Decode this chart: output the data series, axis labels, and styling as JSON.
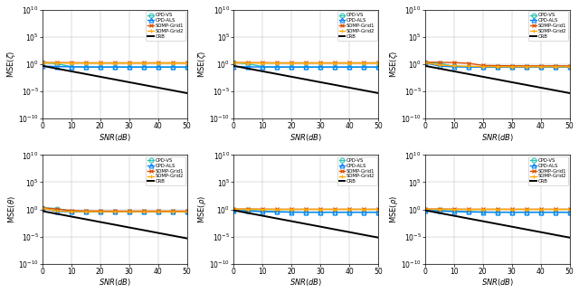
{
  "snr": [
    0,
    5,
    10,
    15,
    20,
    25,
    30,
    35,
    40,
    45,
    50
  ],
  "colors": {
    "cpd_vs": "#2ec4b6",
    "cpd_als": "#0080ff",
    "somp_grid1": "#d94f00",
    "somp_grid2": "#ffaa00",
    "crb": "#000000"
  },
  "subplot_ylabels": [
    "MSE($\\zeta$)",
    "MSE($\\zeta$)",
    "MSE($\\zeta$)",
    "MSE($\\theta$)",
    "MSE($\\rho$)",
    "MSE($\\rho$)"
  ],
  "legend_labels": [
    "CPD-VS",
    "CPD-ALS",
    "SOMP-Grid1",
    "SOMP-Grid2",
    "CRB"
  ],
  "subplots": [
    {
      "cpd_vs": [
        2.0,
        1.2,
        0.35,
        0.32,
        0.31,
        0.3,
        0.3,
        0.3,
        0.3,
        0.3,
        0.3
      ],
      "cpd_als": [
        0.45,
        0.38,
        0.33,
        0.31,
        0.3,
        0.3,
        0.3,
        0.3,
        0.3,
        0.3,
        0.3
      ],
      "somp_grid1": [
        2.0,
        2.0,
        1.9,
        1.8,
        1.8,
        1.8,
        1.8,
        1.8,
        1.8,
        1.8,
        1.8
      ],
      "somp_grid2": [
        1.8,
        1.7,
        1.6,
        1.6,
        1.6,
        1.6,
        1.6,
        1.6,
        1.6,
        1.6,
        1.6
      ],
      "crb": [
        0.5,
        0.16,
        0.05,
        0.016,
        0.005,
        0.0016,
        0.0005,
        0.00016,
        5e-05,
        1.6e-05,
        5e-06
      ]
    },
    {
      "cpd_vs": [
        2.0,
        1.2,
        0.35,
        0.32,
        0.31,
        0.3,
        0.3,
        0.3,
        0.3,
        0.3,
        0.3
      ],
      "cpd_als": [
        0.38,
        0.33,
        0.31,
        0.3,
        0.3,
        0.3,
        0.3,
        0.3,
        0.3,
        0.3,
        0.3
      ],
      "somp_grid1": [
        2.0,
        2.0,
        1.9,
        1.8,
        1.8,
        1.8,
        1.8,
        1.8,
        1.8,
        1.8,
        1.8
      ],
      "somp_grid2": [
        1.8,
        1.7,
        1.6,
        1.6,
        1.6,
        1.6,
        1.6,
        1.6,
        1.6,
        1.6,
        1.6
      ],
      "crb": [
        0.5,
        0.16,
        0.05,
        0.016,
        0.005,
        0.0016,
        0.0005,
        0.00016,
        5e-05,
        1.6e-05,
        5e-06
      ]
    },
    {
      "cpd_vs": [
        2.2,
        1.5,
        0.4,
        0.33,
        0.31,
        0.3,
        0.3,
        0.3,
        0.3,
        0.3,
        0.3
      ],
      "cpd_als": [
        1.8,
        0.45,
        0.33,
        0.31,
        0.3,
        0.3,
        0.3,
        0.3,
        0.3,
        0.3,
        0.3
      ],
      "somp_grid1": [
        2.5,
        2.2,
        2.0,
        1.5,
        0.6,
        0.55,
        0.52,
        0.5,
        0.5,
        0.5,
        0.5
      ],
      "somp_grid2": [
        2.0,
        0.7,
        0.5,
        0.42,
        0.38,
        0.36,
        0.35,
        0.35,
        0.35,
        0.35,
        0.35
      ],
      "crb": [
        0.5,
        0.16,
        0.05,
        0.016,
        0.005,
        0.0016,
        0.0005,
        0.00016,
        5e-05,
        1.6e-05,
        5e-06
      ]
    },
    {
      "cpd_vs": [
        2.0,
        1.5,
        0.45,
        0.4,
        0.38,
        0.37,
        0.37,
        0.37,
        0.37,
        0.37,
        0.37
      ],
      "cpd_als": [
        1.8,
        0.42,
        0.38,
        0.37,
        0.37,
        0.37,
        0.37,
        0.37,
        0.37,
        0.37,
        0.37
      ],
      "somp_grid1": [
        2.0,
        1.2,
        0.65,
        0.55,
        0.52,
        0.5,
        0.5,
        0.5,
        0.5,
        0.5,
        0.5
      ],
      "somp_grid2": [
        1.8,
        0.5,
        0.42,
        0.39,
        0.38,
        0.38,
        0.38,
        0.38,
        0.38,
        0.38,
        0.38
      ],
      "crb": [
        0.5,
        0.16,
        0.05,
        0.016,
        0.005,
        0.0016,
        0.0005,
        0.00016,
        5e-05,
        1.6e-05,
        5e-06
      ]
    },
    {
      "cpd_vs": [
        1.0,
        0.75,
        0.5,
        0.4,
        0.35,
        0.32,
        0.32,
        0.32,
        0.32,
        0.32,
        0.32
      ],
      "cpd_als": [
        0.7,
        0.5,
        0.4,
        0.35,
        0.32,
        0.31,
        0.31,
        0.31,
        0.31,
        0.31,
        0.31
      ],
      "somp_grid1": [
        1.2,
        1.2,
        1.15,
        1.1,
        1.1,
        1.1,
        1.1,
        1.1,
        1.1,
        1.1,
        1.1
      ],
      "somp_grid2": [
        1.1,
        1.05,
        1.0,
        1.0,
        1.0,
        1.0,
        1.0,
        1.0,
        1.0,
        1.0,
        1.0
      ],
      "crb": [
        0.7,
        0.22,
        0.07,
        0.022,
        0.007,
        0.0022,
        0.0007,
        0.00022,
        7e-05,
        2.2e-05,
        7e-06
      ]
    },
    {
      "cpd_vs": [
        1.0,
        0.75,
        0.5,
        0.4,
        0.35,
        0.32,
        0.32,
        0.32,
        0.32,
        0.32,
        0.32
      ],
      "cpd_als": [
        0.7,
        0.5,
        0.4,
        0.35,
        0.32,
        0.31,
        0.31,
        0.31,
        0.31,
        0.31,
        0.31
      ],
      "somp_grid1": [
        1.2,
        1.2,
        1.15,
        1.1,
        1.1,
        1.1,
        1.1,
        1.1,
        1.1,
        1.1,
        1.1
      ],
      "somp_grid2": [
        1.1,
        1.05,
        1.0,
        1.0,
        1.0,
        1.0,
        1.0,
        1.0,
        1.0,
        1.0,
        1.0
      ],
      "crb": [
        0.7,
        0.22,
        0.07,
        0.022,
        0.007,
        0.0022,
        0.0007,
        0.00022,
        7e-05,
        2.2e-05,
        7e-06
      ]
    }
  ]
}
